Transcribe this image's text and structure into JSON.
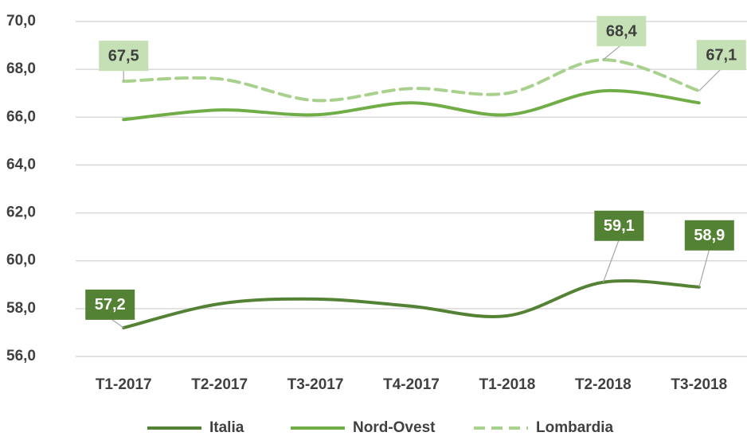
{
  "chart_data": {
    "type": "line",
    "categories": [
      "T1-2017",
      "T2-2017",
      "T3-2017",
      "T4-2017",
      "T1-2018",
      "T2-2018",
      "T3-2018"
    ],
    "series": [
      {
        "name": "Italia",
        "color": "#548235",
        "dash": false,
        "values": [
          57.2,
          58.2,
          58.4,
          58.1,
          57.7,
          59.1,
          58.9
        ],
        "value_labels": [
          "57,2",
          null,
          null,
          null,
          null,
          "59,1",
          "58,9"
        ]
      },
      {
        "name": "Nord-Ovest",
        "color": "#70ad47",
        "dash": false,
        "values": [
          65.9,
          66.3,
          66.1,
          66.6,
          66.1,
          67.1,
          66.6
        ]
      },
      {
        "name": "Lombardia",
        "color": "#a9d18e",
        "dash": true,
        "values": [
          67.5,
          67.6,
          66.7,
          67.2,
          67.0,
          68.4,
          67.1
        ],
        "value_labels": [
          "67,5",
          null,
          null,
          null,
          null,
          "68,4",
          "67,1"
        ]
      }
    ],
    "ylim": [
      56,
      70
    ],
    "yticks": [
      {
        "value": 56,
        "label": "56,0"
      },
      {
        "value": 58,
        "label": "58,0"
      },
      {
        "value": 60,
        "label": "60,0"
      },
      {
        "value": 62,
        "label": "62,0"
      },
      {
        "value": 64,
        "label": "64,0"
      },
      {
        "value": 66,
        "label": "66,0"
      },
      {
        "value": 68,
        "label": "68,0"
      },
      {
        "value": 70,
        "label": "70,0"
      }
    ],
    "grid": true,
    "legend": "bottom"
  }
}
